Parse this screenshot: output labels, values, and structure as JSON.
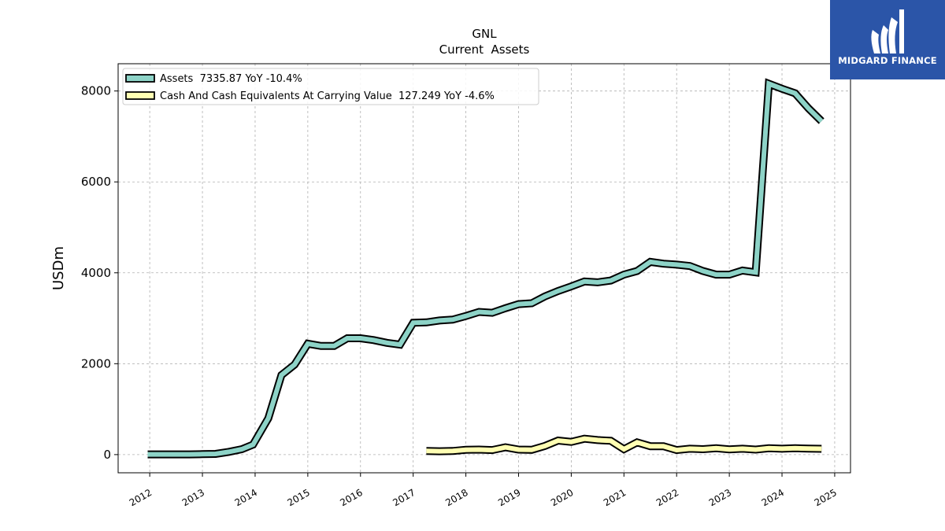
{
  "chart_data": {
    "type": "line",
    "title": "GNL",
    "subtitle": "Current  Assets",
    "xlabel": "",
    "ylabel": "USDm",
    "xlim": [
      2011.4,
      2025.3
    ],
    "ylim": [
      -400,
      8600
    ],
    "x_ticks": [
      "2012",
      "2013",
      "2014",
      "2015",
      "2016",
      "2017",
      "2018",
      "2019",
      "2020",
      "2021",
      "2022",
      "2023",
      "2024",
      "2025"
    ],
    "y_ticks": [
      "0",
      "2000",
      "4000",
      "6000",
      "8000"
    ],
    "grid": true,
    "legend_position": "top-left",
    "series": [
      {
        "name": "Assets  7335.87 YoY -10.4%",
        "color": "#8dd3c7",
        "x": [
          2011.96,
          2012.25,
          2012.5,
          2012.75,
          2013.0,
          2013.25,
          2013.5,
          2013.75,
          2013.96,
          2014.25,
          2014.5,
          2014.75,
          2015.0,
          2015.25,
          2015.5,
          2015.75,
          2016.0,
          2016.25,
          2016.5,
          2016.75,
          2017.0,
          2017.25,
          2017.5,
          2017.75,
          2018.0,
          2018.25,
          2018.5,
          2018.75,
          2019.0,
          2019.25,
          2019.5,
          2019.75,
          2020.0,
          2020.25,
          2020.5,
          2020.75,
          2021.0,
          2021.25,
          2021.5,
          2021.75,
          2022.0,
          2022.25,
          2022.5,
          2022.75,
          2023.0,
          2023.25,
          2023.5,
          2023.75,
          2024.0,
          2024.25,
          2024.5,
          2024.75
        ],
        "values": [
          5,
          5,
          5,
          5,
          10,
          15,
          60,
          120,
          220,
          800,
          1750,
          1980,
          2440,
          2390,
          2390,
          2560,
          2560,
          2520,
          2460,
          2420,
          2900,
          2910,
          2950,
          2970,
          3050,
          3140,
          3120,
          3220,
          3310,
          3330,
          3480,
          3600,
          3700,
          3810,
          3790,
          3830,
          3960,
          4040,
          4240,
          4200,
          4180,
          4150,
          4040,
          3960,
          3960,
          4050,
          4010,
          8160,
          8050,
          7950,
          7620,
          7335.87
        ]
      },
      {
        "name": "Cash And Cash Equivalents At Carrying Value  127.249 YoY -4.6%",
        "color": "#ffffb3",
        "x": [
          2017.25,
          2017.5,
          2017.75,
          2018.0,
          2018.25,
          2018.5,
          2018.75,
          2019.0,
          2019.25,
          2019.5,
          2019.75,
          2020.0,
          2020.25,
          2020.5,
          2020.75,
          2021.0,
          2021.25,
          2021.5,
          2021.75,
          2022.0,
          2022.25,
          2022.5,
          2022.75,
          2023.0,
          2023.25,
          2023.5,
          2023.75,
          2024.0,
          2024.25,
          2024.5,
          2024.75
        ],
        "values": [
          80,
          75,
          80,
          105,
          110,
          100,
          160,
          110,
          105,
          190,
          310,
          280,
          350,
          320,
          305,
          120,
          270,
          185,
          185,
          100,
          130,
          120,
          140,
          115,
          130,
          110,
          140,
          130,
          140,
          133,
          127.249
        ]
      }
    ]
  },
  "logo": {
    "text": "MIDGARD FINANCE"
  }
}
